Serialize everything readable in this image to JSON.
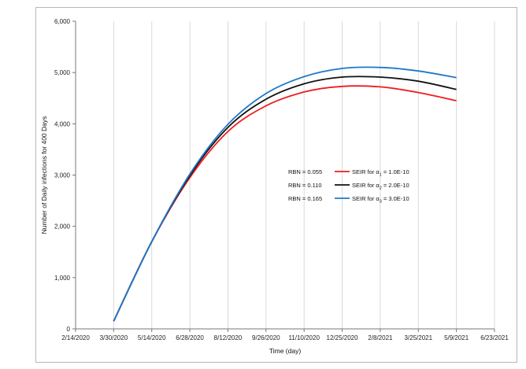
{
  "chart_data": {
    "type": "line",
    "title": "",
    "xlabel": "Time (day)",
    "ylabel": "Number of Daily infections for 400 Days",
    "x_tick_labels": [
      "2/14/2020",
      "3/30/2020",
      "5/14/2020",
      "6/28/2020",
      "8/12/2020",
      "9/26/2020",
      "11/10/2020",
      "12/25/2020",
      "2/8/2021",
      "3/25/2021",
      "5/9/2021",
      "6/23/2021"
    ],
    "x_range": [
      "2/14/2020",
      "6/23/2021"
    ],
    "y_tick_labels": [
      "0",
      "1,000",
      "2,000",
      "3,000",
      "4,000",
      "5,000",
      "6,000"
    ],
    "ylim": [
      0,
      6000
    ],
    "grid": "vertical gridlines only",
    "legend_placement": "center-right",
    "x": [
      "3/30/2020",
      "5/14/2020",
      "6/28/2020",
      "8/12/2020",
      "9/26/2020",
      "11/10/2020",
      "12/25/2020",
      "2/8/2021",
      "3/25/2021",
      "5/9/2021"
    ],
    "series": [
      {
        "name": "SEIR for α1 = 1.0E-10",
        "rbn_label": "RBN = 0.055",
        "legend_label_prefix": "SEIR for α",
        "legend_subscript": "1",
        "legend_label_suffix": " = 1.0E-10",
        "color": "#ee1c1c",
        "values": [
          150,
          1700,
          2950,
          3850,
          4350,
          4620,
          4730,
          4720,
          4610,
          4450
        ]
      },
      {
        "name": "SEIR for α2 = 2.0E-10",
        "rbn_label": "RBN = 0.110",
        "legend_label_prefix": "SEIR for α",
        "legend_subscript": "2",
        "legend_label_suffix": " = 2.0E-10",
        "color": "#111111",
        "values": [
          150,
          1700,
          2990,
          3930,
          4480,
          4780,
          4910,
          4910,
          4830,
          4670
        ]
      },
      {
        "name": "SEIR for α3 = 3.0E-10",
        "rbn_label": "RBN = 0.165",
        "legend_label_prefix": "SEIR for α",
        "legend_subscript": "3",
        "legend_label_suffix": " = 3.0E-10",
        "color": "#1f78c8",
        "values": [
          150,
          1700,
          3020,
          3990,
          4590,
          4920,
          5080,
          5100,
          5030,
          4900
        ]
      }
    ]
  }
}
